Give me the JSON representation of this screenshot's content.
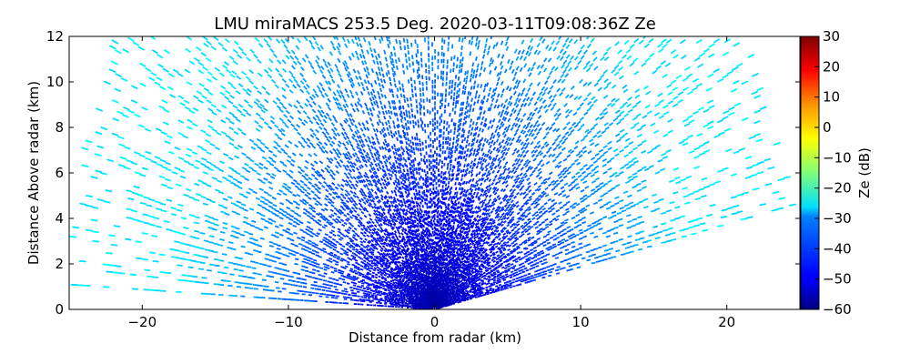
{
  "chart_data": {
    "type": "scatter",
    "title": "LMU miraMACS 253.5 Deg. 2020-03-11T09:08:36Z  Ze",
    "xlabel": "Distance from radar (km)",
    "ylabel": "Distance Above radar  (km)",
    "xlim": [
      -25,
      25
    ],
    "ylim": [
      0,
      12
    ],
    "xticks": [
      -20,
      -10,
      0,
      10,
      20
    ],
    "yticks": [
      0,
      2,
      4,
      6,
      8,
      10,
      12
    ],
    "xtick_labels": [
      "−20",
      "−10",
      "0",
      "10",
      "20"
    ],
    "ytick_labels": [
      "0",
      "2",
      "4",
      "6",
      "8",
      "10",
      "12"
    ],
    "grid": false,
    "colorbar": {
      "label": "Ze (dB)",
      "range": [
        -60,
        30
      ],
      "colormap": "jet",
      "ticks": [
        30,
        20,
        10,
        0,
        -10,
        -20,
        -30,
        -40,
        -50,
        -60
      ],
      "tick_labels": [
        "30",
        "20",
        "10",
        "0",
        "−10",
        "−20",
        "−30",
        "−40",
        "−50",
        "−60"
      ]
    },
    "scan": {
      "range_max_km": 25,
      "elevation_min_deg": 10,
      "elevation_max_deg": 178,
      "ze_near_db": -58,
      "ze_far_db": -28
    }
  }
}
